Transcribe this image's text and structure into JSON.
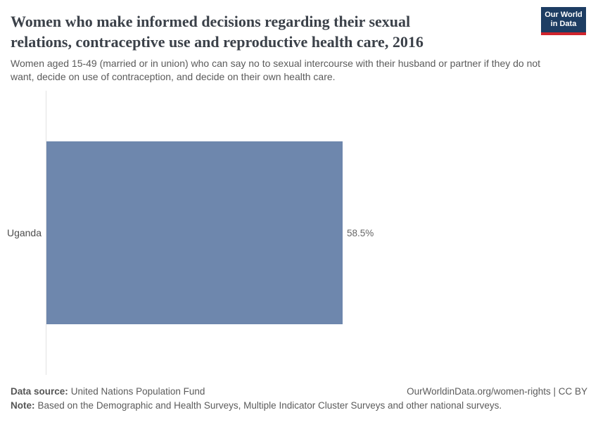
{
  "header": {
    "title_lines": [
      "Women who make informed decisions regarding their sexual",
      "relations, contraceptive use and reproductive health care, 2016"
    ],
    "subtitle_lines": [
      "Women aged 15-49 (married or in union) who can say no to sexual intercourse with their husband or partner if they do not",
      "want, decide on use of contraception, and decide on their own health care."
    ],
    "logo": {
      "line1": "Our World",
      "line2": "in Data",
      "bg_color": "#1d3d63",
      "stripe_color": "#d0242c"
    }
  },
  "chart_data": {
    "type": "bar",
    "orientation": "horizontal",
    "title": "Women who make informed decisions regarding their sexual relations, contraceptive use and reproductive health care, 2016",
    "subtitle": "Women aged 15-49 (married or in union) who can say no to sexual intercourse with their husband or partner if they do not want, decide on use of contraception, and decide on their own health care.",
    "categories": [
      "Uganda"
    ],
    "values": [
      58.5
    ],
    "value_labels": [
      "58.5%"
    ],
    "unit": "%",
    "xlim": [
      0,
      100
    ],
    "bar_color": "#6e87ad",
    "grid": false,
    "legend": "none"
  },
  "footer": {
    "source_label": "Data source:",
    "source_value": "United Nations Population Fund",
    "rights": "OurWorldinData.org/women-rights | CC BY",
    "note_label": "Note:",
    "note_value": "Based on the Demographic and Health Surveys, Multiple Indicator Cluster Surveys and other national surveys."
  }
}
